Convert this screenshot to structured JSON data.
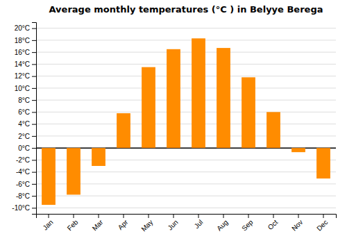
{
  "chart_data": {
    "type": "bar",
    "title": "Average monthly temperatures (°C ) in Belyye Berega",
    "categories": [
      "Jan",
      "Feb",
      "Mar",
      "Apr",
      "May",
      "Jun",
      "Jul",
      "Aug",
      "Sep",
      "Oct",
      "Nov",
      "Dec"
    ],
    "values": [
      -9.5,
      -7.8,
      -3.0,
      5.8,
      13.5,
      16.5,
      18.3,
      16.7,
      11.8,
      6.0,
      -0.7,
      -5.1
    ],
    "color": "#FF8C00",
    "ylim": [
      -11,
      21
    ],
    "yticks": [
      {
        "value": -10,
        "label": "-10°C"
      },
      {
        "value": -8,
        "label": "-8°C"
      },
      {
        "value": -6,
        "label": "-6°C"
      },
      {
        "value": -4,
        "label": "-4°C"
      },
      {
        "value": -2,
        "label": "-2°C"
      },
      {
        "value": 0,
        "label": "0°C"
      },
      {
        "value": 2,
        "label": "2°C"
      },
      {
        "value": 4,
        "label": "4°C"
      },
      {
        "value": 6,
        "label": "6°C"
      },
      {
        "value": 8,
        "label": "8°C"
      },
      {
        "value": 10,
        "label": "10°C"
      },
      {
        "value": 12,
        "label": "12°C"
      },
      {
        "value": 14,
        "label": "14°C"
      },
      {
        "value": 16,
        "label": "16°C"
      },
      {
        "value": 18,
        "label": "18°C"
      },
      {
        "value": 20,
        "label": "20°C"
      }
    ],
    "grid": true
  }
}
